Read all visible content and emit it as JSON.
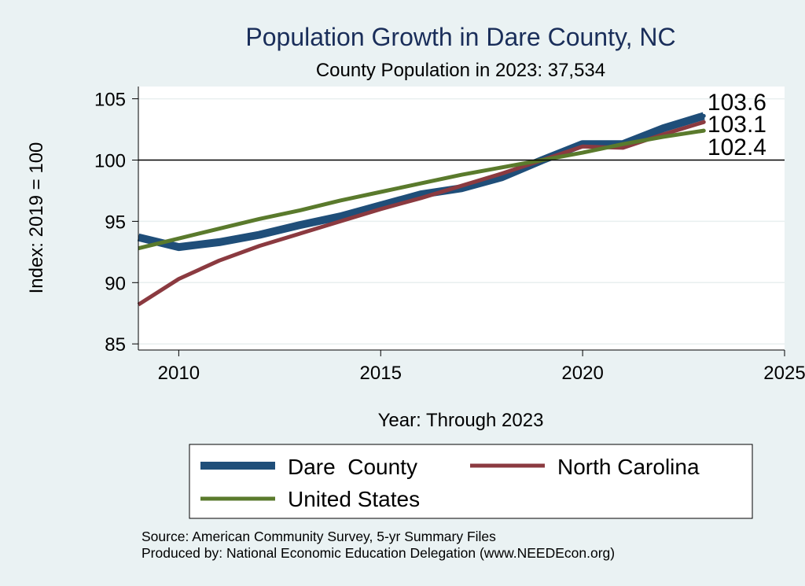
{
  "chart_data": {
    "type": "line",
    "title": "Population Growth in Dare County, NC",
    "subtitle": "County Population in 2023: 37,534",
    "xlabel": "Year: Through 2023",
    "ylabel": "Index: 2019 = 100",
    "xlim": [
      2009,
      2025
    ],
    "ylim": [
      84.5,
      106
    ],
    "xticks": [
      2010,
      2015,
      2020,
      2025
    ],
    "yticks": [
      85,
      90,
      95,
      100,
      105
    ],
    "reference_line": 100,
    "grid": true,
    "legend_position": "bottom",
    "x": [
      2009,
      2010,
      2011,
      2012,
      2013,
      2014,
      2015,
      2016,
      2017,
      2018,
      2019,
      2020,
      2021,
      2022,
      2023
    ],
    "series": [
      {
        "name": "Dare  County",
        "color": "#1f4e79",
        "values": [
          93.7,
          92.9,
          93.3,
          93.9,
          94.7,
          95.4,
          96.3,
          97.2,
          97.7,
          98.6,
          100.0,
          101.3,
          101.3,
          102.6,
          103.6
        ],
        "end_label": "103.6"
      },
      {
        "name": "North Carolina",
        "color": "#8b3a40",
        "values": [
          88.2,
          90.3,
          91.8,
          93.0,
          94.0,
          95.0,
          96.0,
          96.9,
          97.9,
          98.9,
          100.0,
          101.1,
          101.0,
          102.1,
          103.1
        ],
        "end_label": "103.1"
      },
      {
        "name": "United States",
        "color": "#5a7a2c",
        "values": [
          92.8,
          93.6,
          94.4,
          95.2,
          95.9,
          96.7,
          97.4,
          98.1,
          98.8,
          99.4,
          100.0,
          100.6,
          101.3,
          101.9,
          102.4
        ],
        "end_label": "102.4"
      }
    ],
    "notes": [
      "Source: American Community Survey, 5-yr Summary Files",
      "Produced by: National Economic Education Delegation (www.NEEDEcon.org)"
    ]
  }
}
